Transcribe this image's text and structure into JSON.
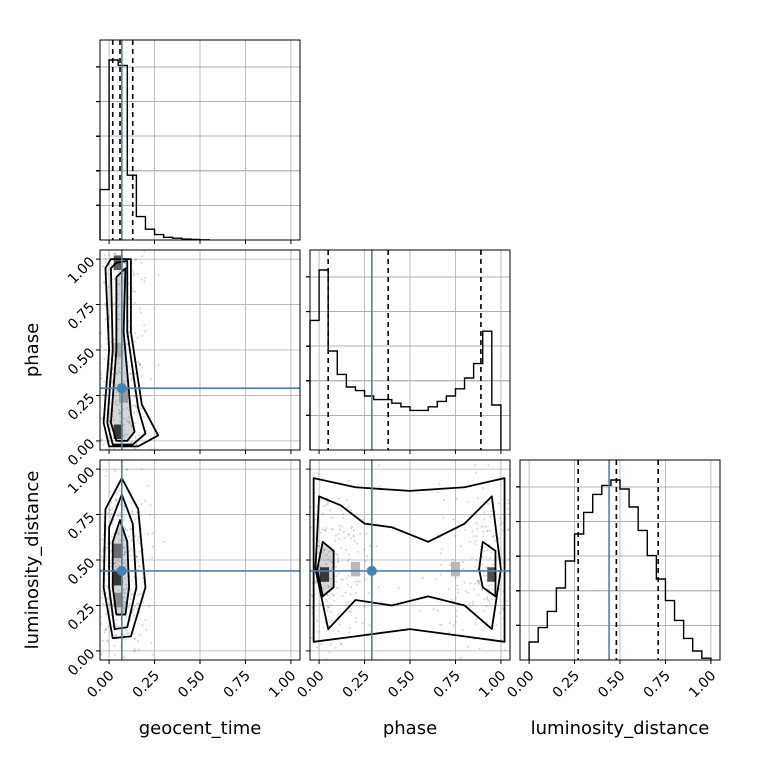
{
  "chart_data": {
    "type": "corner",
    "parameters": [
      "geocent_time",
      "phase",
      "luminosity_distance"
    ],
    "axis_labels": {
      "geocent_time": "geocent_time",
      "phase": "phase",
      "luminosity_distance": "luminosity_distance"
    },
    "ticks": [
      0.0,
      0.25,
      0.5,
      0.75,
      1.0
    ],
    "tick_labels": [
      "0.00",
      "0.25",
      "0.50",
      "0.75",
      "1.00"
    ],
    "range": [
      -0.05,
      1.05
    ],
    "grid": true,
    "truths": {
      "geocent_time": 0.07,
      "phase": 0.29,
      "luminosity_distance": 0.44
    },
    "truth_color": "#4682b4",
    "marginals": {
      "geocent_time": {
        "bin_edges": [
          -0.05,
          0.0,
          0.05,
          0.1,
          0.15,
          0.2,
          0.25,
          0.3,
          0.35,
          0.4,
          0.45,
          0.5,
          0.55
        ],
        "counts": [
          0.28,
          1.0,
          0.97,
          0.36,
          0.13,
          0.06,
          0.03,
          0.015,
          0.01,
          0.005,
          0.003,
          0.001
        ],
        "quantiles": [
          0.02,
          0.06,
          0.13
        ]
      },
      "phase": {
        "bin_edges": [
          -0.05,
          0.0,
          0.05,
          0.1,
          0.15,
          0.2,
          0.25,
          0.3,
          0.35,
          0.4,
          0.45,
          0.5,
          0.55,
          0.6,
          0.65,
          0.7,
          0.75,
          0.8,
          0.85,
          0.9,
          0.95,
          1.0
        ],
        "counts": [
          0.72,
          1.0,
          0.55,
          0.42,
          0.35,
          0.33,
          0.3,
          0.28,
          0.28,
          0.26,
          0.24,
          0.22,
          0.22,
          0.24,
          0.27,
          0.3,
          0.34,
          0.4,
          0.48,
          0.66,
          0.25
        ],
        "quantiles": [
          0.05,
          0.38,
          0.89
        ]
      },
      "luminosity_distance": {
        "bin_edges": [
          0.0,
          0.05,
          0.1,
          0.15,
          0.2,
          0.25,
          0.3,
          0.35,
          0.4,
          0.45,
          0.5,
          0.55,
          0.6,
          0.65,
          0.7,
          0.75,
          0.8,
          0.85,
          0.9,
          0.95,
          1.0
        ],
        "counts": [
          0.1,
          0.18,
          0.27,
          0.4,
          0.55,
          0.7,
          0.82,
          0.92,
          0.97,
          1.0,
          0.95,
          0.85,
          0.72,
          0.58,
          0.45,
          0.33,
          0.22,
          0.12,
          0.05,
          0.01
        ],
        "quantiles": [
          0.27,
          0.48,
          0.71
        ]
      }
    },
    "joint": [
      {
        "x": "geocent_time",
        "y": "phase",
        "contours": [
          [
            [
              0.06,
              0.92
            ],
            [
              0.09,
              0.95
            ],
            [
              0.08,
              0.6
            ],
            [
              0.12,
              0.15
            ],
            [
              0.14,
              0.05
            ],
            [
              0.1,
              0.0
            ],
            [
              0.04,
              0.0
            ],
            [
              0.01,
              0.1
            ],
            [
              0.04,
              0.5
            ],
            [
              0.04,
              0.9
            ]
          ],
          [
            [
              0.04,
              0.98
            ],
            [
              0.1,
              0.99
            ],
            [
              0.1,
              0.6
            ],
            [
              0.16,
              0.18
            ],
            [
              0.2,
              0.04
            ],
            [
              0.13,
              -0.02
            ],
            [
              0.02,
              -0.02
            ],
            [
              -0.01,
              0.1
            ],
            [
              0.02,
              0.5
            ],
            [
              0.01,
              0.95
            ]
          ],
          [
            [
              0.01,
              1.0
            ],
            [
              0.12,
              1.0
            ],
            [
              0.12,
              0.6
            ],
            [
              0.18,
              0.2
            ],
            [
              0.27,
              0.03
            ],
            [
              0.16,
              -0.03
            ],
            [
              0.0,
              -0.03
            ],
            [
              -0.03,
              0.1
            ],
            [
              0.0,
              0.5
            ],
            [
              -0.02,
              0.95
            ]
          ]
        ],
        "dense_cells": [
          [
            0.05,
            0.05,
            0.9
          ],
          [
            0.05,
            0.98,
            0.7
          ],
          [
            0.05,
            0.5,
            0.25
          ],
          [
            0.08,
            0.25,
            0.35
          ]
        ]
      },
      {
        "x": "geocent_time",
        "y": "luminosity_distance",
        "contours": [
          [
            [
              0.06,
              0.72
            ],
            [
              0.1,
              0.6
            ],
            [
              0.11,
              0.35
            ],
            [
              0.09,
              0.2
            ],
            [
              0.04,
              0.2
            ],
            [
              0.02,
              0.35
            ],
            [
              0.02,
              0.6
            ]
          ],
          [
            [
              0.07,
              0.86
            ],
            [
              0.13,
              0.7
            ],
            [
              0.15,
              0.35
            ],
            [
              0.1,
              0.13
            ],
            [
              0.03,
              0.12
            ],
            [
              0.0,
              0.35
            ],
            [
              0.0,
              0.68
            ]
          ],
          [
            [
              0.07,
              0.95
            ],
            [
              0.16,
              0.78
            ],
            [
              0.2,
              0.35
            ],
            [
              0.12,
              0.08
            ],
            [
              0.02,
              0.07
            ],
            [
              -0.03,
              0.35
            ],
            [
              -0.02,
              0.78
            ]
          ]
        ],
        "dense_cells": [
          [
            0.05,
            0.4,
            0.9
          ],
          [
            0.05,
            0.55,
            0.6
          ],
          [
            0.05,
            0.28,
            0.45
          ]
        ]
      },
      {
        "x": "phase",
        "y": "luminosity_distance",
        "contours": [
          [
            [
              0.02,
              0.6
            ],
            [
              0.08,
              0.55
            ],
            [
              0.08,
              0.35
            ],
            [
              0.02,
              0.3
            ],
            [
              -0.01,
              0.45
            ]
          ],
          [
            [
              0.9,
              0.6
            ],
            [
              0.97,
              0.55
            ],
            [
              0.97,
              0.3
            ],
            [
              0.9,
              0.35
            ],
            [
              0.88,
              0.45
            ]
          ],
          [
            [
              0.0,
              0.85
            ],
            [
              0.12,
              0.8
            ],
            [
              0.25,
              0.7
            ],
            [
              0.4,
              0.68
            ],
            [
              0.6,
              0.6
            ],
            [
              0.8,
              0.7
            ],
            [
              0.95,
              0.85
            ],
            [
              1.0,
              0.45
            ],
            [
              0.95,
              0.12
            ],
            [
              0.8,
              0.25
            ],
            [
              0.6,
              0.3
            ],
            [
              0.4,
              0.25
            ],
            [
              0.2,
              0.28
            ],
            [
              0.05,
              0.12
            ],
            [
              -0.02,
              0.45
            ]
          ],
          [
            [
              -0.03,
              0.95
            ],
            [
              0.2,
              0.9
            ],
            [
              0.5,
              0.88
            ],
            [
              0.8,
              0.9
            ],
            [
              1.02,
              0.95
            ],
            [
              1.02,
              0.05
            ],
            [
              0.8,
              0.08
            ],
            [
              0.5,
              0.12
            ],
            [
              0.2,
              0.08
            ],
            [
              -0.03,
              0.05
            ]
          ]
        ],
        "dense_cells": [
          [
            0.03,
            0.42,
            0.9
          ],
          [
            0.95,
            0.42,
            0.75
          ],
          [
            0.2,
            0.45,
            0.3
          ],
          [
            0.75,
            0.45,
            0.3
          ]
        ]
      }
    ]
  }
}
